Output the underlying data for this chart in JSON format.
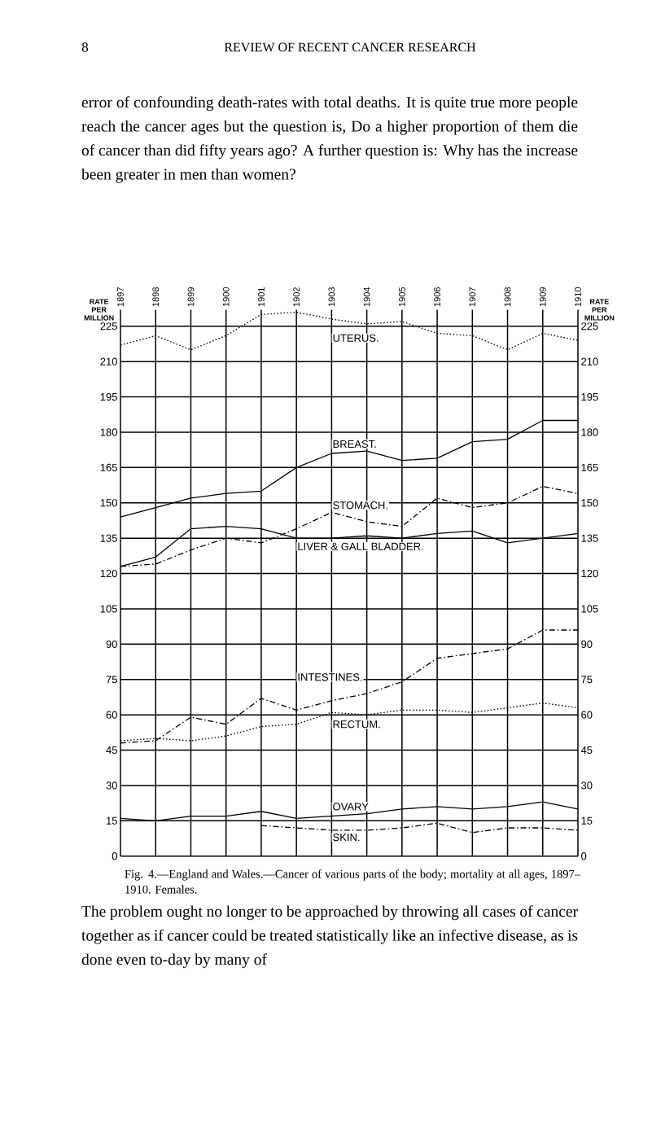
{
  "chart_data": {
    "type": "line",
    "title": "Fig. 4.—England and Wales.—Cancer of various parts of the body; mortality at all ages, 1897–1910. Females.",
    "ylabel": "RATE PER MILLION",
    "y2label": "RATE PER MILLION",
    "x": [
      1897,
      1898,
      1899,
      1900,
      1901,
      1902,
      1903,
      1904,
      1905,
      1906,
      1907,
      1908,
      1909,
      1910
    ],
    "xlim": [
      1897,
      1910
    ],
    "xticks": [
      1897,
      1898,
      1899,
      1900,
      1901,
      1902,
      1903,
      1904,
      1905,
      1906,
      1907,
      1908,
      1909,
      1910
    ],
    "ylim": [
      0,
      232
    ],
    "yticks": [
      0,
      15,
      30,
      45,
      60,
      75,
      90,
      105,
      120,
      135,
      150,
      165,
      180,
      195,
      210,
      225
    ],
    "y2lim": [
      0,
      232
    ],
    "y2ticks": [
      0,
      15,
      30,
      45,
      60,
      75,
      90,
      105,
      120,
      135,
      150,
      165,
      180,
      195,
      210,
      225
    ],
    "grid": true,
    "series": [
      {
        "name": "UTERUS.",
        "color": "#000000",
        "line_style": "dotted",
        "values": [
          217,
          221,
          215,
          221,
          230,
          231,
          228,
          226,
          227,
          222,
          221,
          215,
          222,
          219
        ]
      },
      {
        "name": "BREAST.",
        "color": "#000000",
        "line_style": "solid",
        "values": [
          144,
          148,
          152,
          154,
          155,
          165,
          171,
          172,
          168,
          169,
          176,
          177,
          185,
          185
        ]
      },
      {
        "name": "STOMACH.",
        "color": "#000000",
        "line_style": "dashdot",
        "values": [
          123,
          124,
          130,
          135,
          133,
          139,
          146,
          142,
          140,
          152,
          148,
          150,
          157,
          154
        ]
      },
      {
        "name": "LIVER & GALL BLADDER.",
        "color": "#000000",
        "line_style": "solid",
        "values": [
          123,
          127,
          139,
          140,
          139,
          135,
          135,
          136,
          135,
          137,
          138,
          133,
          135,
          137
        ]
      },
      {
        "name": "INTESTINES.",
        "color": "#000000",
        "line_style": "dashdot",
        "values": [
          48,
          49,
          59,
          56,
          67,
          62,
          66,
          69,
          74,
          84,
          86,
          88,
          96,
          96
        ]
      },
      {
        "name": "RECTUM.",
        "color": "#000000",
        "line_style": "dotted",
        "values": [
          49,
          50,
          49,
          51,
          55,
          56,
          61,
          60,
          62,
          62,
          61,
          63,
          65,
          63
        ]
      },
      {
        "name": "OVARY",
        "color": "#000000",
        "line_style": "solid",
        "values": [
          16,
          15,
          17,
          17,
          19,
          16,
          17,
          18,
          20,
          21,
          20,
          21,
          23,
          20
        ]
      },
      {
        "name": "SKIN.",
        "color": "#000000",
        "line_style": "dashdot",
        "values": [
          null,
          null,
          null,
          null,
          13,
          12,
          11,
          11,
          12,
          14,
          10,
          12,
          12,
          11
        ]
      }
    ],
    "annotations": [
      "8",
      "REVIEW OF RECENT CANCER RESEARCH",
      "error of confounding death-rates with total deaths. It is quite true more people reach the cancer ages but the question is, Do a higher proportion of them die of cancer than did fifty years ago? A further question is: Why has the increase been greater in men than women?",
      "The problem ought no longer to be approached by throwing all cases of cancer together as if cancer could be treated statistically like an infective disease, as is done even to-day by many of"
    ]
  }
}
